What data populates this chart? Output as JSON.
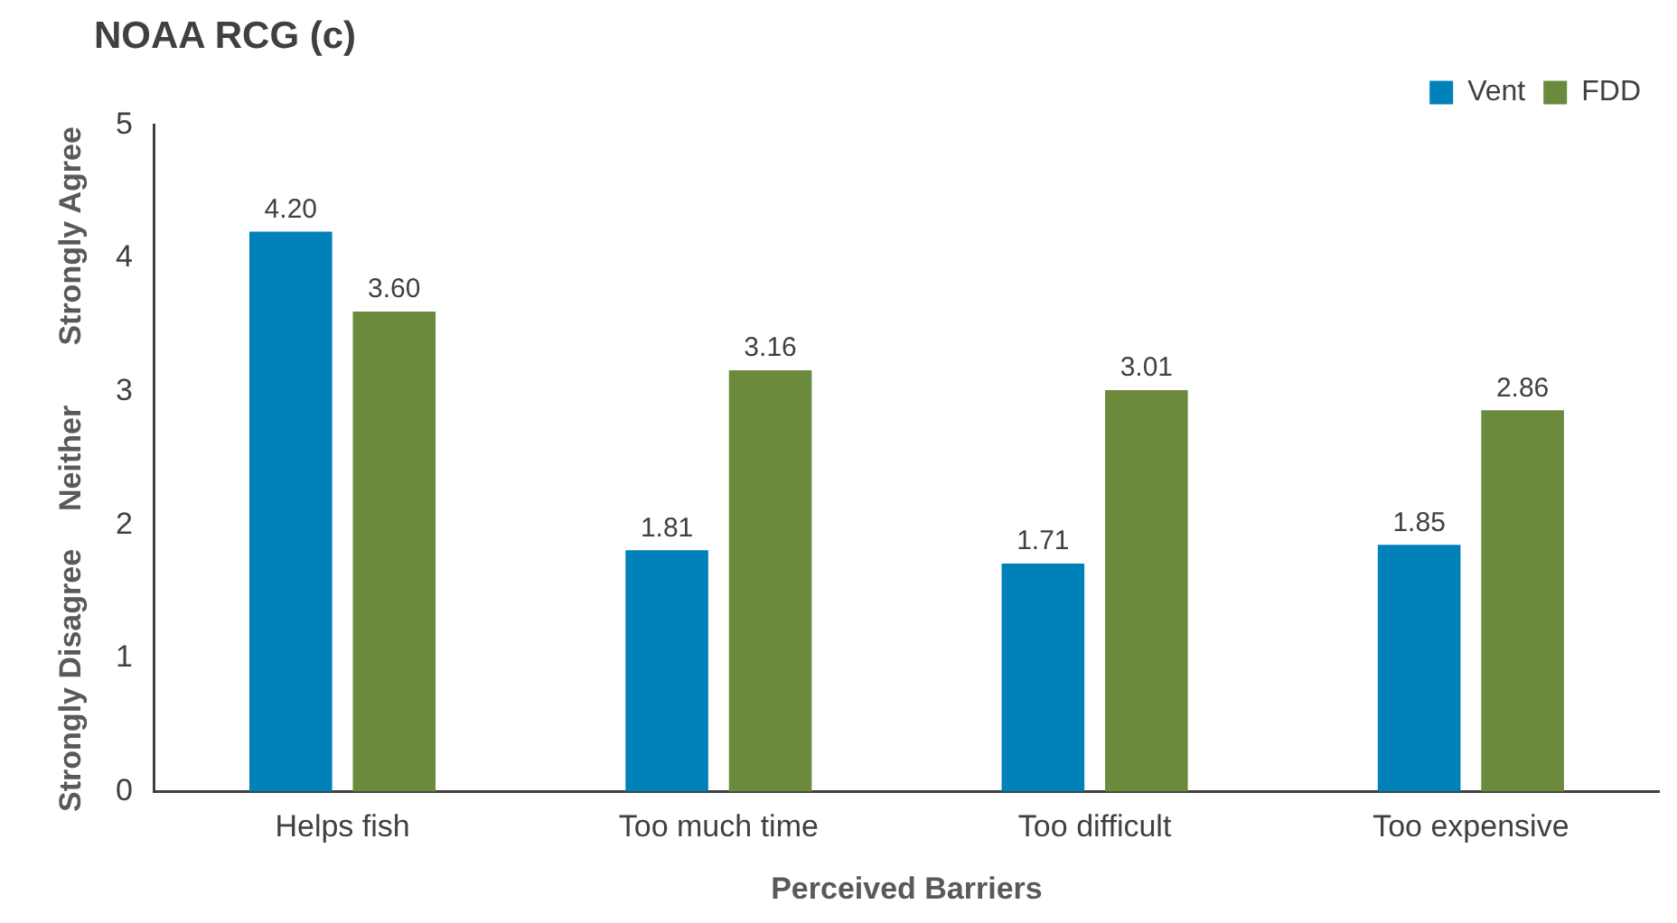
{
  "chart_data": {
    "type": "bar",
    "title": "NOAA RCG (c)",
    "xlabel": "Perceived Barriers",
    "annotations": [
      "Strongly Agree",
      "Neither",
      "Strongly Disagree"
    ],
    "categories": [
      "Helps fish",
      "Too much time",
      "Too difficult",
      "Too expensive"
    ],
    "series": [
      {
        "name": "Vent",
        "color": "#0081b9",
        "values": [
          4.2,
          1.81,
          1.71,
          1.85
        ],
        "value_labels": [
          "4.20",
          "1.81",
          "1.71",
          "1.85"
        ]
      },
      {
        "name": "FDD",
        "color": "#6b8a3c",
        "values": [
          3.6,
          3.16,
          3.01,
          2.86
        ],
        "value_labels": [
          "3.60",
          "3.16",
          "3.01",
          "2.86"
        ]
      }
    ],
    "ylim": [
      0,
      5
    ],
    "yticks": [
      0,
      1,
      2,
      3,
      4,
      5
    ],
    "grid": false,
    "legend": "top right"
  }
}
